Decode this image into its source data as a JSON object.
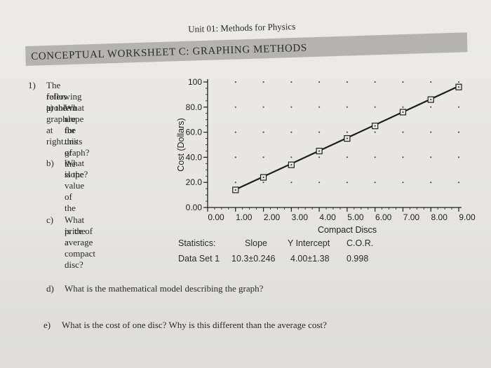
{
  "header": {
    "unit_title": "Unit 01: Methods for Physics"
  },
  "banner": {
    "title": "CONCEPTUAL WORKSHEET C: GRAPHING METHODS"
  },
  "questions": {
    "q1_number": "1)",
    "q1_line1": "The   following   problem",
    "q1_line2": "refers to the graph at right.",
    "a_label": "a)",
    "a_line1": "What are the units of the",
    "a_line2": "slope for this graph?",
    "b_label": "b)",
    "b_line1": "What is the value of the",
    "b_line2": "slope?",
    "c_label": "c)",
    "c_line1": "What   is   the   average",
    "c_line2": "price of a compact disc?",
    "d_label": "d)",
    "d_text": "What is the mathematical model describing the graph?",
    "e_label": "e)",
    "e_text": "What is the cost of one disc? Why is this different than the average cost?"
  },
  "statistics": {
    "label": "Statistics:",
    "col_slope": "Slope",
    "col_intercept": "Y Intercept",
    "col_cor": "C.O.R.",
    "row_label": "Data Set 1",
    "slope": "10.3±0.246",
    "intercept": "4.00±1.38",
    "cor": "0.998"
  },
  "chart_data": {
    "type": "scatter",
    "xlabel": "Compact Discs",
    "ylabel": "Cost (Dollars)",
    "xlim": [
      0,
      9
    ],
    "ylim": [
      0,
      100
    ],
    "x_ticks": [
      "0.00",
      "1.00",
      "2.00",
      "3.00",
      "4.00",
      "5.00",
      "6.00",
      "7.00",
      "8.00",
      "9.00"
    ],
    "y_ticks": [
      "0.00",
      "20.0",
      "40.0",
      "60.0",
      "80.0",
      "100"
    ],
    "x_tick_values": [
      0,
      1,
      2,
      3,
      4,
      5,
      6,
      7,
      8,
      9
    ],
    "y_tick_values": [
      0,
      20,
      40,
      60,
      80,
      100
    ],
    "grid": "dotted",
    "series": [
      {
        "marker": "square",
        "x": [
          1,
          2,
          3,
          4,
          5,
          6,
          7,
          8,
          9
        ],
        "y": [
          14,
          24,
          34,
          45,
          55,
          65,
          76,
          86,
          96
        ]
      }
    ],
    "fit_line": {
      "x": [
        1,
        9
      ],
      "y": [
        14.3,
        96.7
      ]
    },
    "colors": {
      "marks": "#1e1e1e"
    }
  }
}
